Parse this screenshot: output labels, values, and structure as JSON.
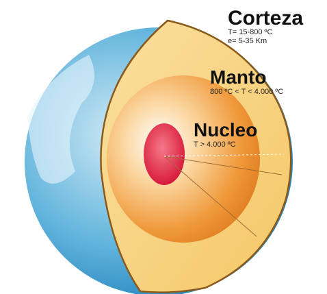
{
  "layers": [
    {
      "name": "Corteza",
      "lines": [
        "T= 15-800 ºC",
        "e= 5-35 Km"
      ]
    },
    {
      "name": "Manto",
      "lines": [
        "800 ºC < T < 4.000 ºC"
      ]
    },
    {
      "name": "Nucleo",
      "lines": [
        "T > 4.000 ºC"
      ]
    }
  ]
}
